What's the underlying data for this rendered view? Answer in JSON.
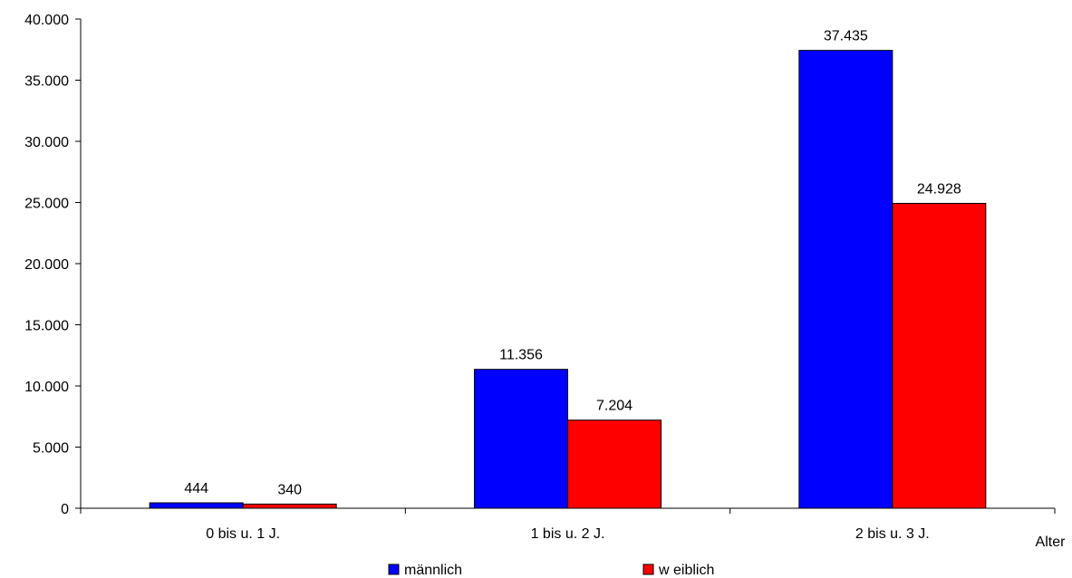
{
  "chart_data": {
    "type": "bar",
    "categories": [
      "0 bis u. 1 J.",
      "1 bis u. 2 J.",
      "2 bis u. 3 J."
    ],
    "series": [
      {
        "name": "männlich",
        "values": [
          444,
          11356,
          37435
        ],
        "color": "#0000ff"
      },
      {
        "name": "w eiblich",
        "values": [
          340,
          7204,
          24928
        ],
        "color": "#ff0000"
      }
    ],
    "value_labels": [
      [
        "444",
        "11.356",
        "37.435"
      ],
      [
        "340",
        "7.204",
        "24.928"
      ]
    ],
    "xlabel": "Alter",
    "ylabel": "",
    "ylim": [
      0,
      40000
    ],
    "yticks": [
      0,
      5000,
      10000,
      15000,
      20000,
      25000,
      30000,
      35000,
      40000
    ],
    "ytick_labels": [
      "0",
      "5.000",
      "10.000",
      "15.000",
      "20.000",
      "25.000",
      "30.000",
      "35.000",
      "40.000"
    ],
    "grid": false,
    "legend_position": "bottom"
  }
}
